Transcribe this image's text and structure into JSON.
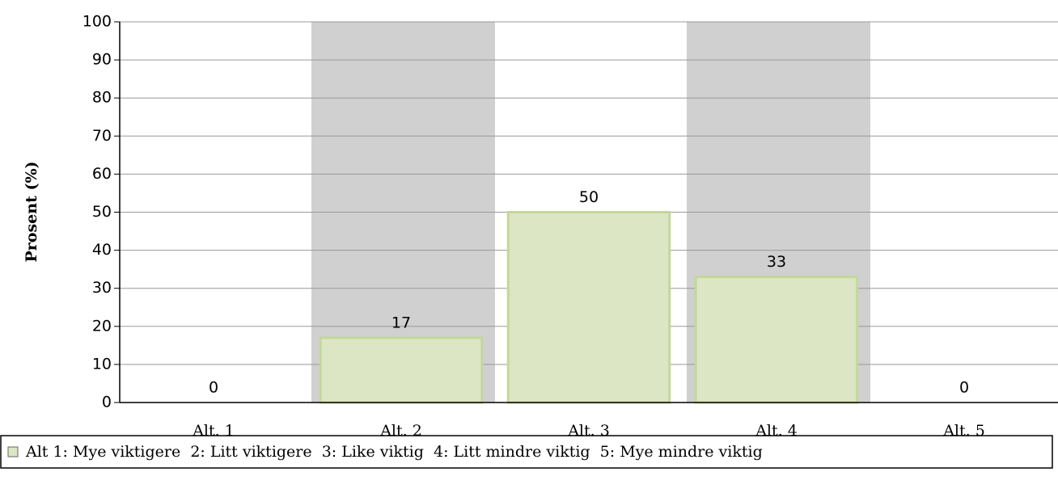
{
  "chart_data": {
    "type": "bar",
    "y_label": "Prosent (%)",
    "categories": [
      "Alt. 1",
      "Alt. 2",
      "Alt. 3",
      "Alt. 4",
      "Alt. 5"
    ],
    "series": [
      {
        "name": "Alt 1: Mye viktigere  2: Litt viktigere  3: Like viktig  4: Litt mindre viktig  5: Mye mindre viktig",
        "color": "#dce6c4",
        "values": [
          0,
          17,
          50,
          33,
          0
        ]
      }
    ],
    "ylim": [
      0,
      100
    ],
    "yticks": [
      0,
      10,
      20,
      30,
      40,
      50,
      60,
      70,
      80,
      90,
      100
    ],
    "grid": true
  }
}
